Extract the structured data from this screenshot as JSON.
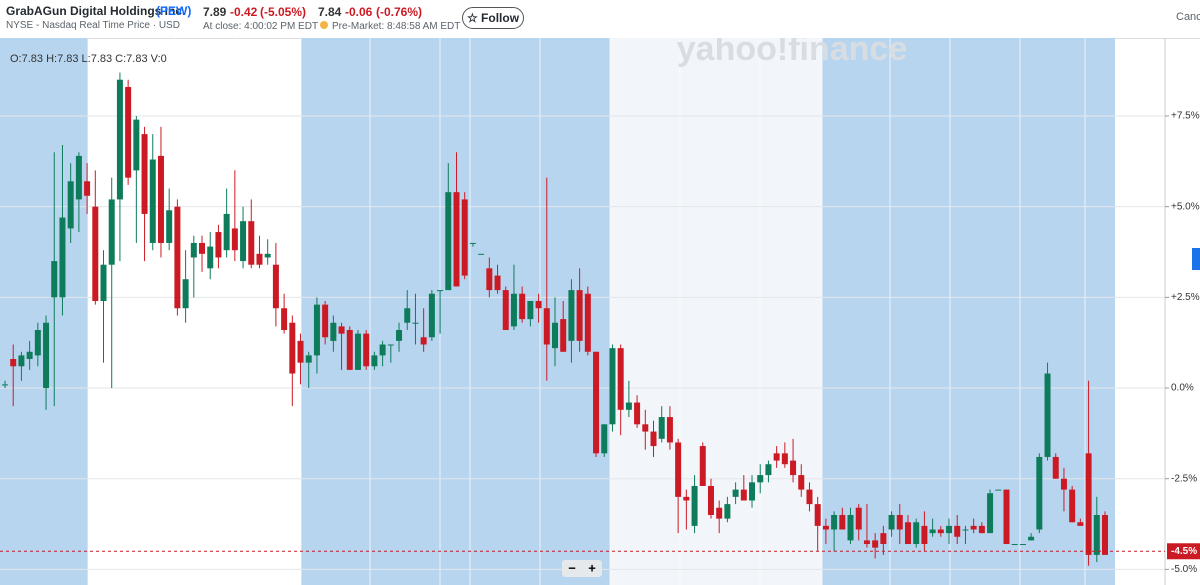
{
  "header": {
    "company": "GrabAGun Digital Holdings Inc.",
    "ticker": "(PEW)",
    "exchange": "NYSE - Nasdaq Real Time Price · USD",
    "close_price": "7.89",
    "close_change": "-0.42",
    "close_pct": "(-5.05%)",
    "close_time": "At close: 4:00:02 PM EDT",
    "pre_price": "7.84",
    "pre_change": "-0.06",
    "pre_pct": "(-0.76%)",
    "pre_time": "Pre-Market: 8:48:58 AM EDT",
    "follow": "Follow",
    "right_cut": "Canc"
  },
  "chart_data": {
    "type": "candlestick",
    "legend": "O:7.83  H:7.83  L:7.83  C:7.83  V:0",
    "watermark": "yahoo!finance",
    "zoom_out": "−",
    "zoom_in": "+",
    "up_color": "#0e7c5a",
    "down_color": "#cc1a24",
    "grid": true,
    "ylim": [
      -5.43,
      9.65
    ],
    "yticks": [
      {
        "value": -5,
        "label": "-5.0%"
      },
      {
        "value": -2.5,
        "label": "-2.5%"
      },
      {
        "value": 0,
        "label": "0.0%"
      },
      {
        "value": 2.5,
        "label": "+2.5%"
      },
      {
        "value": 5,
        "label": "+5.0%"
      },
      {
        "value": 7.5,
        "label": "+7.5%"
      }
    ],
    "current": {
      "value": -4.5,
      "label": "-4.5%"
    },
    "candles": [
      [
        0.1,
        0.2,
        0.0,
        0.1
      ],
      [
        0.8,
        1.2,
        -0.5,
        0.6
      ],
      [
        0.6,
        1.0,
        0.2,
        0.9
      ],
      [
        0.8,
        1.3,
        0.5,
        1.0
      ],
      [
        0.9,
        1.8,
        0.6,
        1.6
      ],
      [
        0.0,
        2.0,
        -0.6,
        1.8
      ],
      [
        2.5,
        6.5,
        -0.5,
        3.5
      ],
      [
        2.5,
        6.7,
        2.0,
        4.7
      ],
      [
        4.4,
        6.2,
        4.0,
        5.7
      ],
      [
        5.2,
        6.5,
        4.3,
        6.4
      ],
      [
        5.7,
        6.2,
        4.8,
        5.3
      ],
      [
        5.0,
        6.0,
        2.3,
        2.4
      ],
      [
        2.4,
        3.8,
        0.7,
        3.4
      ],
      [
        3.4,
        5.8,
        0.0,
        5.2
      ],
      [
        5.2,
        8.7,
        3.5,
        8.5
      ],
      [
        8.3,
        8.5,
        5.6,
        5.8
      ],
      [
        6.0,
        7.5,
        4.0,
        7.4
      ],
      [
        7.0,
        7.2,
        3.5,
        4.8
      ],
      [
        4.0,
        7.0,
        3.8,
        6.3
      ],
      [
        6.4,
        7.2,
        3.6,
        4.0
      ],
      [
        4.0,
        5.5,
        3.8,
        4.9
      ],
      [
        5.0,
        5.2,
        2.0,
        2.2
      ],
      [
        2.2,
        3.8,
        1.8,
        3.0
      ],
      [
        3.6,
        4.2,
        2.5,
        4.0
      ],
      [
        4.0,
        4.2,
        3.2,
        3.7
      ],
      [
        3.3,
        4.3,
        3.0,
        3.9
      ],
      [
        4.3,
        4.5,
        3.3,
        3.6
      ],
      [
        3.8,
        5.5,
        3.6,
        4.8
      ],
      [
        4.4,
        6.0,
        3.5,
        3.8
      ],
      [
        3.5,
        5.0,
        3.3,
        4.6
      ],
      [
        4.6,
        5.2,
        3.3,
        3.4
      ],
      [
        3.7,
        4.2,
        3.3,
        3.4
      ],
      [
        3.6,
        4.1,
        3.4,
        3.7
      ],
      [
        3.4,
        4.0,
        1.7,
        2.2
      ],
      [
        2.2,
        2.6,
        1.5,
        1.6
      ],
      [
        1.8,
        2.0,
        -0.5,
        0.4
      ],
      [
        1.3,
        1.5,
        0.1,
        0.7
      ],
      [
        0.7,
        1.0,
        0.0,
        0.9
      ],
      [
        0.9,
        2.5,
        0.4,
        2.3
      ],
      [
        2.3,
        2.4,
        1.2,
        1.4
      ],
      [
        1.3,
        2.0,
        1.0,
        1.8
      ],
      [
        1.7,
        1.8,
        0.5,
        1.5
      ],
      [
        1.6,
        1.7,
        0.5,
        0.5
      ],
      [
        0.5,
        1.6,
        0.5,
        1.5
      ],
      [
        1.5,
        1.6,
        0.5,
        0.6
      ],
      [
        0.6,
        1.0,
        0.5,
        0.9
      ],
      [
        0.9,
        1.3,
        0.6,
        1.2
      ],
      [
        1.2,
        1.2,
        0.7,
        1.2
      ],
      [
        1.3,
        1.8,
        1.0,
        1.6
      ],
      [
        1.8,
        2.7,
        1.6,
        2.2
      ],
      [
        1.8,
        2.6,
        1.2,
        1.8
      ],
      [
        1.4,
        2.2,
        1.0,
        1.2
      ],
      [
        1.4,
        2.7,
        1.3,
        2.6
      ],
      [
        2.7,
        2.7,
        1.5,
        2.7
      ],
      [
        2.7,
        6.2,
        2.7,
        5.4
      ],
      [
        5.4,
        6.5,
        2.8,
        2.8
      ],
      [
        5.2,
        5.4,
        3.0,
        3.1
      ],
      [
        4.0,
        4.0,
        3.9,
        4.0
      ],
      [
        3.7,
        3.7,
        3.7,
        3.7
      ],
      [
        3.3,
        3.6,
        2.5,
        2.7
      ],
      [
        3.1,
        3.4,
        2.6,
        2.7
      ],
      [
        2.7,
        2.8,
        1.6,
        1.6
      ],
      [
        1.7,
        3.4,
        1.6,
        2.6
      ],
      [
        2.6,
        2.8,
        1.8,
        1.9
      ],
      [
        1.9,
        2.4,
        1.7,
        2.4
      ],
      [
        2.4,
        2.6,
        1.8,
        2.2
      ],
      [
        2.2,
        5.8,
        0.2,
        1.2
      ],
      [
        1.1,
        2.5,
        0.6,
        1.8
      ],
      [
        1.9,
        2.4,
        1.0,
        1.0
      ],
      [
        1.3,
        3.0,
        0.7,
        2.7
      ],
      [
        2.7,
        3.3,
        1.0,
        1.3
      ],
      [
        2.6,
        2.8,
        0.9,
        1.0
      ],
      [
        1.0,
        1.0,
        -1.9,
        -1.8
      ],
      [
        -1.8,
        -1.0,
        -1.9,
        -1.0
      ],
      [
        -1.0,
        1.2,
        -1.2,
        1.1
      ],
      [
        1.1,
        1.2,
        -1.3,
        -0.6
      ],
      [
        -0.6,
        0.2,
        -0.8,
        -0.4
      ],
      [
        -0.4,
        -0.2,
        -1.1,
        -1.0
      ],
      [
        -1.0,
        -0.6,
        -1.7,
        -1.2
      ],
      [
        -1.2,
        -0.9,
        -1.9,
        -1.6
      ],
      [
        -1.4,
        -0.5,
        -1.5,
        -0.8
      ],
      [
        -0.8,
        -0.5,
        -1.7,
        -1.5
      ],
      [
        -1.5,
        -1.4,
        -4.0,
        -3.0
      ],
      [
        -3.0,
        -2.8,
        -3.9,
        -3.1
      ],
      [
        -3.8,
        -2.4,
        -4.0,
        -2.7
      ],
      [
        -1.6,
        -1.5,
        -2.7,
        -2.7
      ],
      [
        -2.7,
        -2.5,
        -3.6,
        -3.5
      ],
      [
        -3.3,
        -3.1,
        -4.0,
        -3.6
      ],
      [
        -3.6,
        -3.0,
        -3.7,
        -3.2
      ],
      [
        -3.0,
        -2.6,
        -3.2,
        -2.8
      ],
      [
        -2.8,
        -2.4,
        -3.1,
        -3.1
      ],
      [
        -3.1,
        -2.4,
        -3.3,
        -2.6
      ],
      [
        -2.6,
        -2.1,
        -2.9,
        -2.4
      ],
      [
        -2.4,
        -2.0,
        -2.6,
        -2.1
      ],
      [
        -1.8,
        -1.6,
        -2.2,
        -2.0
      ],
      [
        -1.8,
        -1.5,
        -2.2,
        -2.1
      ],
      [
        -2.0,
        -1.4,
        -2.6,
        -2.4
      ],
      [
        -2.4,
        -2.1,
        -3.0,
        -2.8
      ],
      [
        -2.8,
        -2.6,
        -3.4,
        -3.2
      ],
      [
        -3.2,
        -3.0,
        -4.5,
        -3.8
      ],
      [
        -3.8,
        -3.6,
        -4.3,
        -3.9
      ],
      [
        -3.9,
        -3.4,
        -4.5,
        -3.5
      ],
      [
        -3.5,
        -3.3,
        -3.9,
        -3.9
      ],
      [
        -4.2,
        -3.3,
        -4.3,
        -3.5
      ],
      [
        -3.3,
        -3.2,
        -4.2,
        -3.9
      ],
      [
        -4.2,
        -3.2,
        -4.4,
        -4.3
      ],
      [
        -4.2,
        -4.0,
        -4.7,
        -4.4
      ],
      [
        -4.0,
        -3.8,
        -4.6,
        -4.3
      ],
      [
        -3.9,
        -3.4,
        -4.1,
        -3.5
      ],
      [
        -3.5,
        -3.2,
        -4.3,
        -3.9
      ],
      [
        -3.7,
        -3.5,
        -4.3,
        -4.3
      ],
      [
        -4.3,
        -3.6,
        -4.4,
        -3.7
      ],
      [
        -3.8,
        -3.4,
        -4.5,
        -4.3
      ],
      [
        -4.0,
        -3.6,
        -4.1,
        -3.9
      ],
      [
        -3.9,
        -3.8,
        -4.1,
        -4.0
      ],
      [
        -4.0,
        -3.6,
        -4.3,
        -3.8
      ],
      [
        -3.8,
        -3.5,
        -4.3,
        -4.1
      ],
      [
        -3.9,
        -3.8,
        -4.3,
        -3.9
      ],
      [
        -3.8,
        -3.6,
        -4.0,
        -3.9
      ],
      [
        -3.8,
        -3.7,
        -4.0,
        -4.0
      ],
      [
        -4.0,
        -2.8,
        -4.0,
        -2.9
      ],
      [
        -2.8,
        -2.8,
        -2.8,
        -2.8
      ],
      [
        -2.8,
        -2.8,
        -4.3,
        -4.3
      ],
      [
        -4.3,
        -4.3,
        -4.3,
        -4.3
      ],
      [
        -4.3,
        -4.3,
        -4.3,
        -4.3
      ],
      [
        -4.2,
        -4.0,
        -4.2,
        -4.1
      ],
      [
        -3.9,
        -1.8,
        -4.0,
        -1.9
      ],
      [
        -1.9,
        0.7,
        -2.0,
        0.4
      ],
      [
        -1.9,
        -1.8,
        -2.5,
        -2.5
      ],
      [
        -2.5,
        -2.2,
        -3.4,
        -2.8
      ],
      [
        -2.8,
        -2.7,
        -3.7,
        -3.7
      ],
      [
        -3.7,
        -3.6,
        -3.8,
        -3.8
      ],
      [
        -1.8,
        0.2,
        -4.9,
        -4.6
      ],
      [
        -4.6,
        -3.0,
        -4.8,
        -3.5
      ],
      [
        -3.5,
        -3.4,
        -4.6,
        -4.6
      ]
    ]
  }
}
